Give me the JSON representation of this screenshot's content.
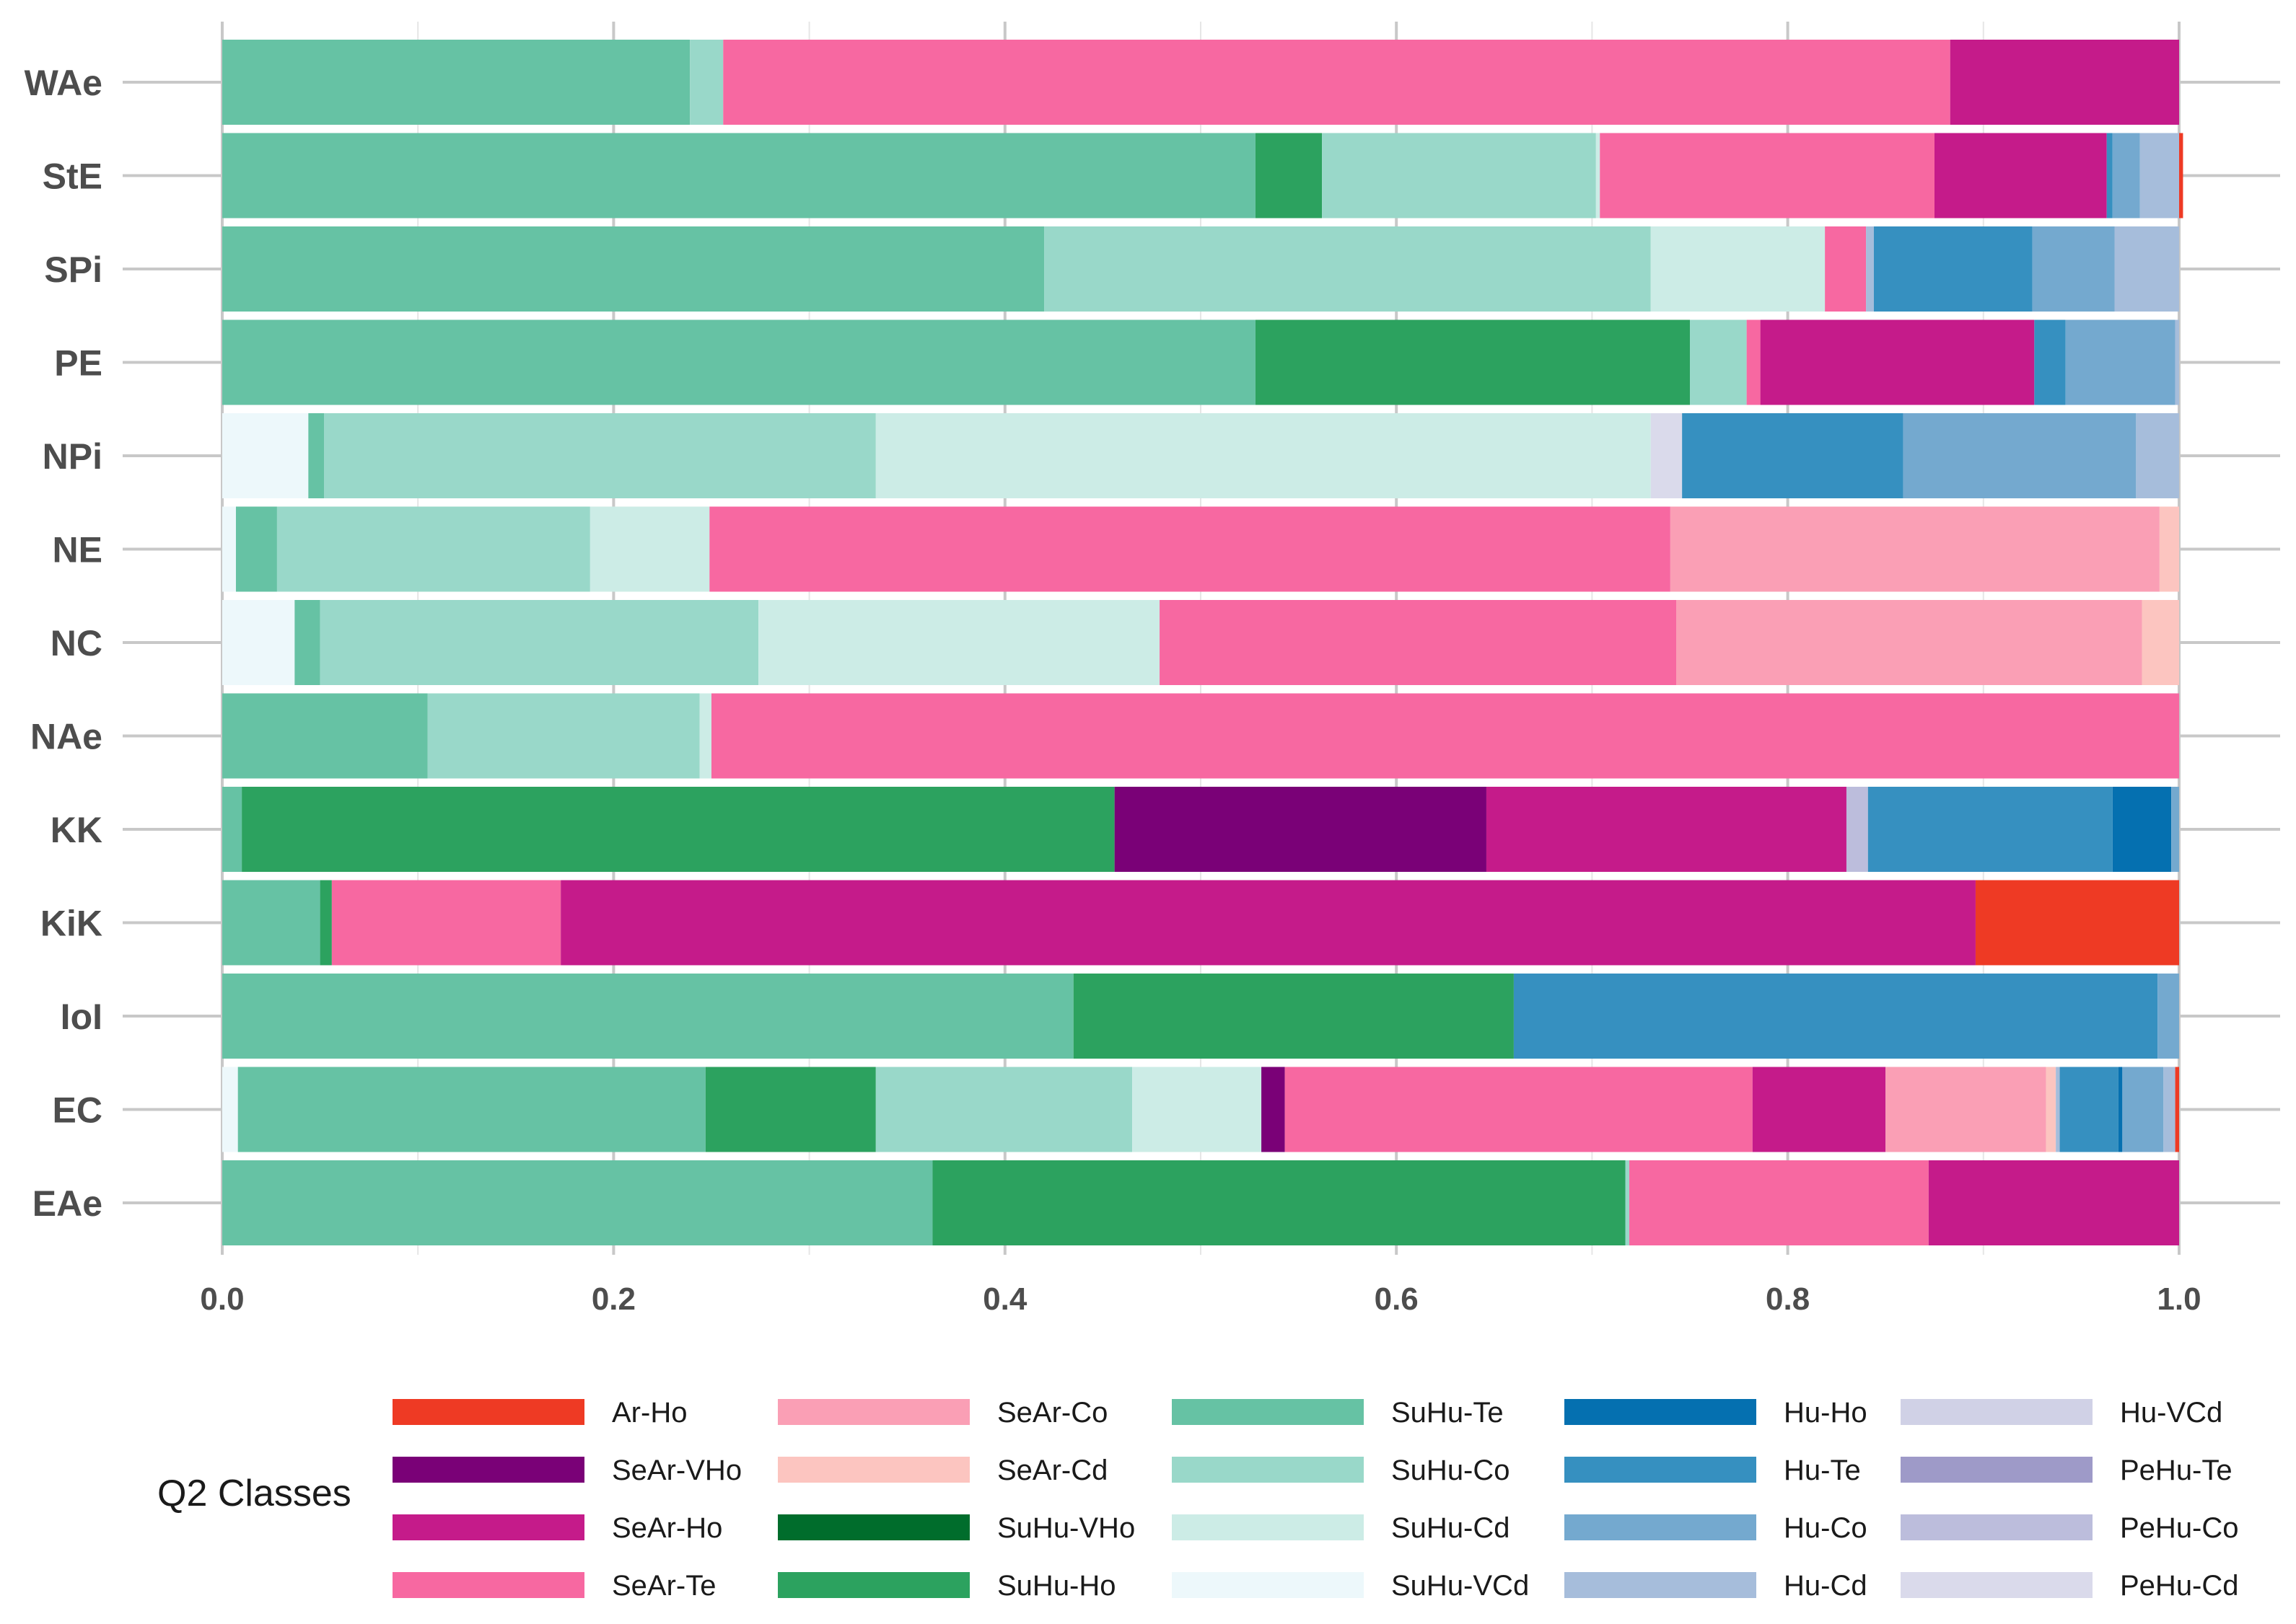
{
  "chart_data": {
    "type": "bar",
    "orientation": "horizontal",
    "stacked": true,
    "xlim": [
      0,
      1
    ],
    "x_ticks": [
      "0.0",
      "0.2",
      "0.4",
      "0.6",
      "0.8",
      "1.0"
    ],
    "x_tick_values": [
      0,
      0.2,
      0.4,
      0.6,
      0.8,
      1.0
    ],
    "grid": true,
    "legend_position": "bottom",
    "legend_title": "Q2 Classes",
    "classes": [
      "Ar-Ho",
      "SeAr-VHo",
      "SeAr-Ho",
      "SeAr-Te",
      "SeAr-Co",
      "SeAr-Cd",
      "SuHu-VHo",
      "SuHu-Ho",
      "SuHu-Te",
      "SuHu-Co",
      "SuHu-Cd",
      "SuHu-VCd",
      "Hu-Ho",
      "Hu-Te",
      "Hu-Co",
      "Hu-Cd",
      "Hu-VCd",
      "PeHu-Te",
      "PeHu-Co",
      "PeHu-Cd"
    ],
    "colors": {
      "Ar-Ho": "#EE3A24",
      "SeAr-VHo": "#7A0177",
      "SeAr-Ho": "#C51B8A",
      "SeAr-Te": "#F768A1",
      "SeAr-Co": "#FA9FB5",
      "SeAr-Cd": "#FCC5C0",
      "SuHu-VHo": "#006D2C",
      "SuHu-Ho": "#2CA25F",
      "SuHu-Te": "#66C2A4",
      "SuHu-Co": "#99D8C9",
      "SuHu-Cd": "#CCECE6",
      "SuHu-VCd": "#EDF8FB",
      "Hu-Ho": "#0570B0",
      "Hu-Te": "#3690C0",
      "Hu-Co": "#74A9CF",
      "Hu-Cd": "#A6BDDB",
      "Hu-VCd": "#D0D1E6",
      "PeHu-Te": "#9E9AC8",
      "PeHu-Co": "#BCBDDC",
      "PeHu-Cd": "#DADAEB"
    },
    "bars": [
      {
        "category": "WAe",
        "segments": [
          {
            "class": "SuHu-Te",
            "value": 0.239
          },
          {
            "class": "SuHu-Co",
            "value": 0.017
          },
          {
            "class": "SeAr-Te",
            "value": 0.627
          },
          {
            "class": "SeAr-Ho",
            "value": 0.117
          }
        ]
      },
      {
        "category": "StE",
        "segments": [
          {
            "class": "SuHu-Te",
            "value": 0.528
          },
          {
            "class": "SuHu-Ho",
            "value": 0.034
          },
          {
            "class": "SuHu-Co",
            "value": 0.14
          },
          {
            "class": "SuHu-Cd",
            "value": 0.002
          },
          {
            "class": "SeAr-Te",
            "value": 0.171
          },
          {
            "class": "SeAr-Ho",
            "value": 0.088
          },
          {
            "class": "Hu-Te",
            "value": 0.003
          },
          {
            "class": "Hu-Co",
            "value": 0.014
          },
          {
            "class": "Hu-Cd",
            "value": 0.02
          },
          {
            "class": "Ar-Ho",
            "value": 0.002
          }
        ]
      },
      {
        "category": "SPi",
        "segments": [
          {
            "class": "SuHu-Te",
            "value": 0.42
          },
          {
            "class": "SuHu-Co",
            "value": 0.31
          },
          {
            "class": "SuHu-Cd",
            "value": 0.089
          },
          {
            "class": "SeAr-Te",
            "value": 0.021
          },
          {
            "class": "Hu-Cd",
            "value": 0.004
          },
          {
            "class": "Hu-Te",
            "value": 0.081
          },
          {
            "class": "Hu-Co",
            "value": 0.042
          },
          {
            "class": "Hu-Cd",
            "value": 0.033
          }
        ]
      },
      {
        "category": "PE",
        "segments": [
          {
            "class": "SuHu-Te",
            "value": 0.528
          },
          {
            "class": "SuHu-Ho",
            "value": 0.222
          },
          {
            "class": "SuHu-Co",
            "value": 0.029
          },
          {
            "class": "SeAr-Te",
            "value": 0.007
          },
          {
            "class": "SeAr-Ho",
            "value": 0.14
          },
          {
            "class": "Hu-Te",
            "value": 0.016
          },
          {
            "class": "Hu-Co",
            "value": 0.056
          },
          {
            "class": "Hu-Cd",
            "value": 0.002
          }
        ]
      },
      {
        "category": "NPi",
        "segments": [
          {
            "class": "SuHu-VCd",
            "value": 0.044
          },
          {
            "class": "SuHu-Te",
            "value": 0.008
          },
          {
            "class": "SuHu-Co",
            "value": 0.282
          },
          {
            "class": "SuHu-Cd",
            "value": 0.396
          },
          {
            "class": "PeHu-Cd",
            "value": 0.016
          },
          {
            "class": "Hu-Te",
            "value": 0.113
          },
          {
            "class": "Hu-Co",
            "value": 0.119
          },
          {
            "class": "Hu-Cd",
            "value": 0.022
          }
        ]
      },
      {
        "category": "NE",
        "segments": [
          {
            "class": "SuHu-VCd",
            "value": 0.007
          },
          {
            "class": "SuHu-Te",
            "value": 0.021
          },
          {
            "class": "SuHu-Co",
            "value": 0.16
          },
          {
            "class": "SuHu-Cd",
            "value": 0.061
          },
          {
            "class": "SeAr-Te",
            "value": 0.491
          },
          {
            "class": "SeAr-Co",
            "value": 0.25
          },
          {
            "class": "SeAr-Cd",
            "value": 0.01
          }
        ]
      },
      {
        "category": "NC",
        "segments": [
          {
            "class": "SuHu-VCd",
            "value": 0.037
          },
          {
            "class": "SuHu-Te",
            "value": 0.013
          },
          {
            "class": "SuHu-Co",
            "value": 0.224
          },
          {
            "class": "SuHu-Cd",
            "value": 0.205
          },
          {
            "class": "SeAr-Te",
            "value": 0.264
          },
          {
            "class": "SeAr-Co",
            "value": 0.238
          },
          {
            "class": "SeAr-Cd",
            "value": 0.019
          }
        ]
      },
      {
        "category": "NAe",
        "segments": [
          {
            "class": "SuHu-Te",
            "value": 0.105
          },
          {
            "class": "SuHu-Co",
            "value": 0.139
          },
          {
            "class": "SuHu-Cd",
            "value": 0.006
          },
          {
            "class": "SeAr-Te",
            "value": 0.75
          }
        ]
      },
      {
        "category": "KK",
        "segments": [
          {
            "class": "SuHu-Te",
            "value": 0.01
          },
          {
            "class": "SuHu-Ho",
            "value": 0.446
          },
          {
            "class": "SeAr-VHo",
            "value": 0.19
          },
          {
            "class": "SeAr-Ho",
            "value": 0.184
          },
          {
            "class": "PeHu-Co",
            "value": 0.011
          },
          {
            "class": "Hu-Te",
            "value": 0.125
          },
          {
            "class": "Hu-Ho",
            "value": 0.03
          },
          {
            "class": "Hu-Co",
            "value": 0.004
          }
        ]
      },
      {
        "category": "KiK",
        "segments": [
          {
            "class": "SuHu-Te",
            "value": 0.05
          },
          {
            "class": "SuHu-Ho",
            "value": 0.006
          },
          {
            "class": "SeAr-Te",
            "value": 0.117
          },
          {
            "class": "SeAr-Ho",
            "value": 0.723
          },
          {
            "class": "Ar-Ho",
            "value": 0.104
          }
        ]
      },
      {
        "category": "IoI",
        "segments": [
          {
            "class": "SuHu-Te",
            "value": 0.435
          },
          {
            "class": "SuHu-Ho",
            "value": 0.225
          },
          {
            "class": "Hu-Te",
            "value": 0.329
          },
          {
            "class": "Hu-Co",
            "value": 0.011
          }
        ]
      },
      {
        "category": "EC",
        "segments": [
          {
            "class": "SuHu-VCd",
            "value": 0.008
          },
          {
            "class": "SuHu-Te",
            "value": 0.239
          },
          {
            "class": "SuHu-Ho",
            "value": 0.087
          },
          {
            "class": "SuHu-Co",
            "value": 0.131
          },
          {
            "class": "SuHu-Cd",
            "value": 0.066
          },
          {
            "class": "SeAr-VHo",
            "value": 0.012
          },
          {
            "class": "SeAr-Te",
            "value": 0.239
          },
          {
            "class": "SeAr-Ho",
            "value": 0.068
          },
          {
            "class": "SeAr-Co",
            "value": 0.082
          },
          {
            "class": "SeAr-Cd",
            "value": 0.005
          },
          {
            "class": "Hu-Cd",
            "value": 0.002
          },
          {
            "class": "Hu-Te",
            "value": 0.03
          },
          {
            "class": "Hu-Ho",
            "value": 0.002
          },
          {
            "class": "Hu-Co",
            "value": 0.021
          },
          {
            "class": "Hu-Cd",
            "value": 0.006
          },
          {
            "class": "Ar-Ho",
            "value": 0.002
          }
        ]
      },
      {
        "category": "EAe",
        "segments": [
          {
            "class": "SuHu-Te",
            "value": 0.363
          },
          {
            "class": "SuHu-Ho",
            "value": 0.354
          },
          {
            "class": "SuHu-Co",
            "value": 0.002
          },
          {
            "class": "SeAr-Te",
            "value": 0.153
          },
          {
            "class": "SeAr-Ho",
            "value": 0.128
          }
        ]
      }
    ]
  }
}
